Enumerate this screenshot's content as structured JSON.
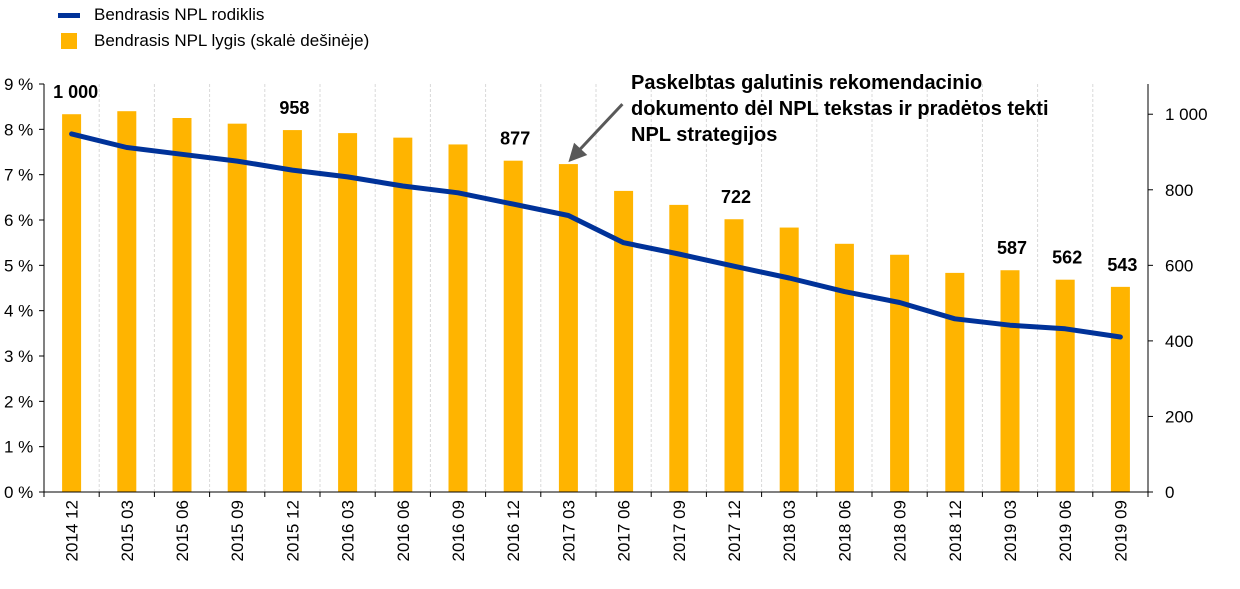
{
  "legend": {
    "line_label": "Bendrasis NPL rodiklis",
    "bar_label": "Bendrasis NPL lygis (skalė dešinėje)"
  },
  "annotation": {
    "lines": [
      "Paskelbtas galutinis rekomendacinio",
      "dokumento dėl NPL tekstas ir pradėtos tekti",
      "NPL strategijos"
    ]
  },
  "colors": {
    "bar": "#FFB400",
    "line": "#003299",
    "grid": "#D9D9D9",
    "arrow": "#595959"
  },
  "chart_data": {
    "type": "bar",
    "categories": [
      "2014 12",
      "2015 03",
      "2015 06",
      "2015 09",
      "2015 12",
      "2016 03",
      "2016 06",
      "2016 09",
      "2016 12",
      "2017 03",
      "2017 06",
      "2017 09",
      "2017 12",
      "2018 03",
      "2018 06",
      "2018 09",
      "2018 12",
      "2019 03",
      "2019 06",
      "2019 09"
    ],
    "series": [
      {
        "name": "Bendrasis NPL lygis (skalė dešinėje)",
        "type": "bar",
        "axis": "right",
        "values": [
          1000,
          1008,
          990,
          975,
          958,
          950,
          938,
          920,
          877,
          868,
          797,
          760,
          722,
          700,
          657,
          628,
          580,
          587,
          562,
          543
        ]
      },
      {
        "name": "Bendrasis NPL rodiklis",
        "type": "line",
        "axis": "left",
        "values": [
          7.9,
          7.6,
          7.45,
          7.3,
          7.1,
          6.95,
          6.75,
          6.6,
          6.35,
          6.1,
          5.5,
          5.25,
          4.98,
          4.72,
          4.42,
          4.18,
          3.82,
          3.68,
          3.6,
          3.42
        ]
      }
    ],
    "bar_data_labels": [
      {
        "index": 0,
        "text": "1 000"
      },
      {
        "index": 4,
        "text": "958"
      },
      {
        "index": 8,
        "text": "877"
      },
      {
        "index": 12,
        "text": "722"
      },
      {
        "index": 17,
        "text": "587"
      },
      {
        "index": 18,
        "text": "562"
      },
      {
        "index": 19,
        "text": "543"
      }
    ],
    "y_left": {
      "ylim": [
        0,
        9
      ],
      "ticks": [
        "0 %",
        "1 %",
        "2 %",
        "3 %",
        "4 %",
        "5 %",
        "6 %",
        "7 %",
        "8 %",
        "9 %"
      ]
    },
    "y_right": {
      "ylim": [
        0,
        1080
      ],
      "ticks": [
        {
          "value": 0,
          "label": "0"
        },
        {
          "value": 200,
          "label": "200"
        },
        {
          "value": 400,
          "label": "400"
        },
        {
          "value": 600,
          "label": "600"
        },
        {
          "value": 800,
          "label": "800"
        },
        {
          "value": 1000,
          "label": "1 000"
        }
      ]
    },
    "grid": "vertical dashed",
    "legend_position": "top-left",
    "annotation_arrow_target_index": 9
  }
}
